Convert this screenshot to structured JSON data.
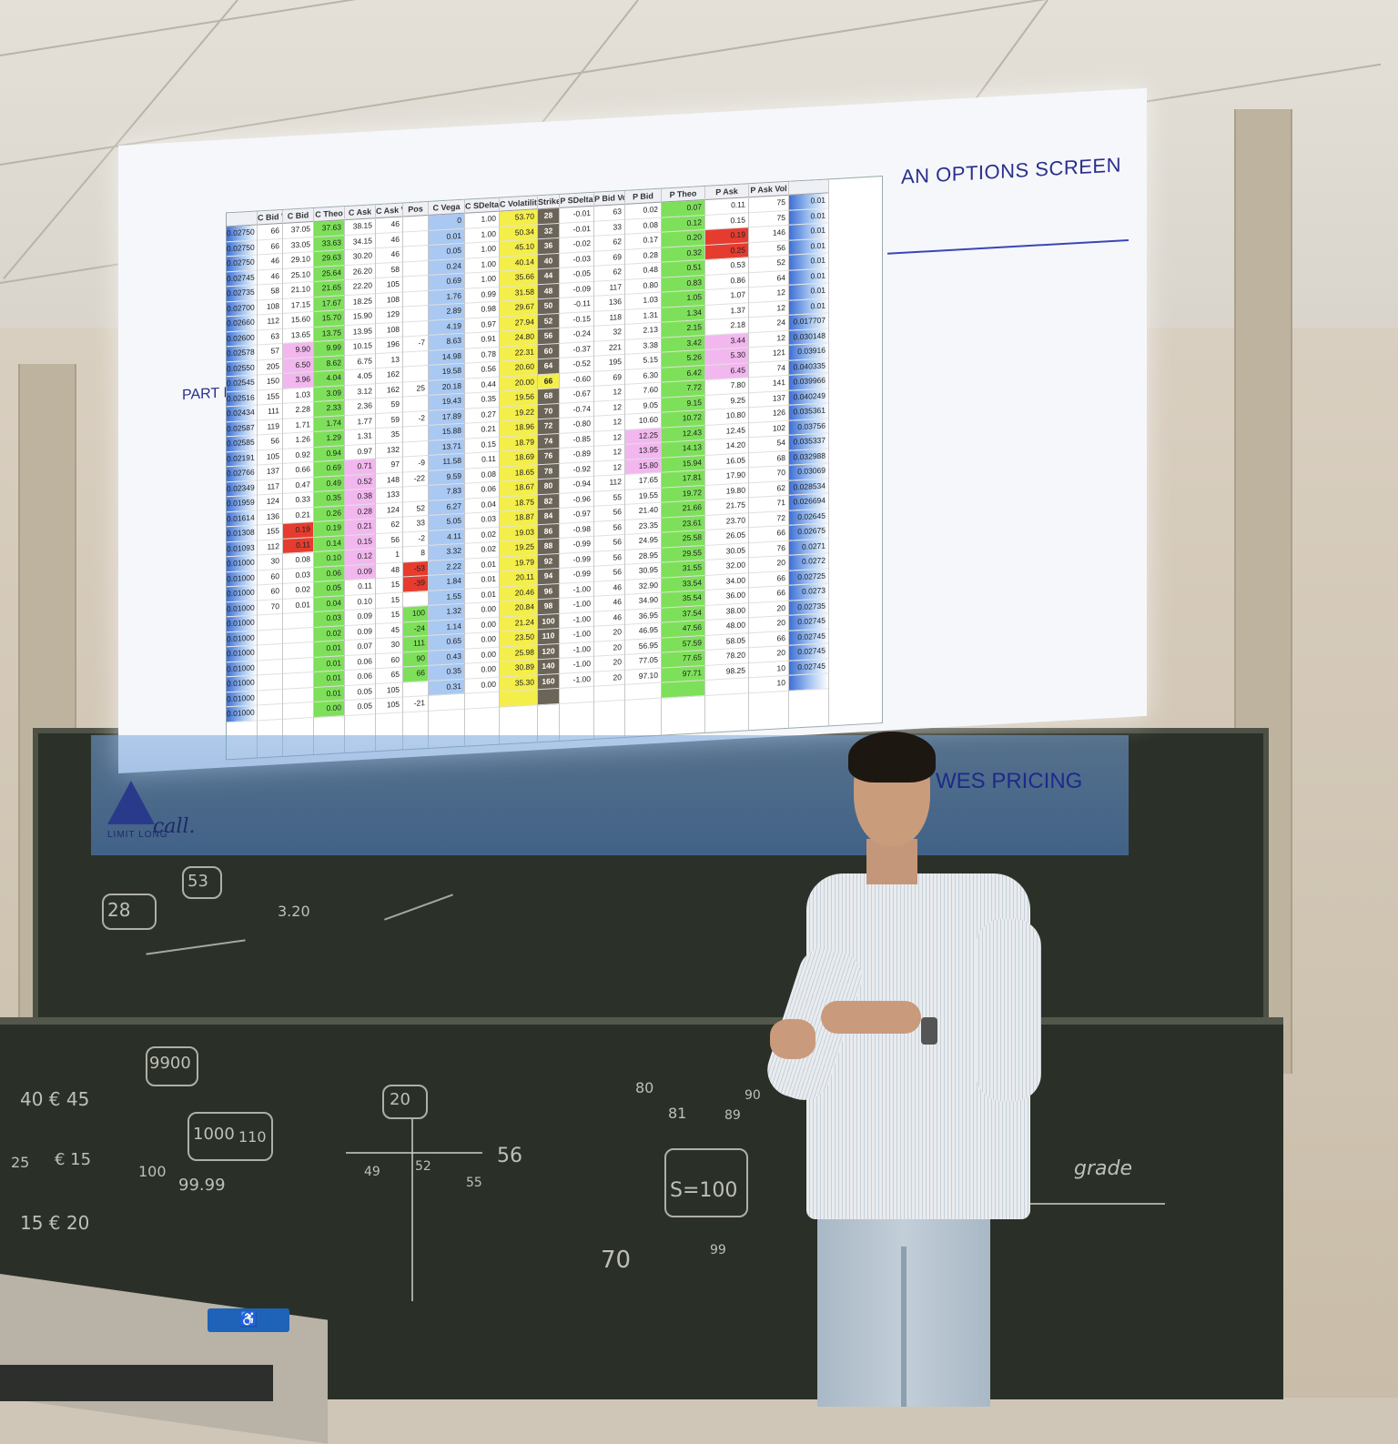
{
  "slide": {
    "title": "AN OPTIONS SCREEN",
    "part": "PART III",
    "banner_text": "WES PRICING",
    "logo_text": "LIMIT LONG",
    "logo_script": "call."
  },
  "table": {
    "columns": [
      {
        "header": "",
        "values": [
          "0.02750",
          "0.02750",
          "0.02750",
          "0.02745",
          "0.02735",
          "0.02700",
          "0.02660",
          "0.02600",
          "0.02578",
          "0.02550",
          "0.02545",
          "0.02516",
          "0.02434",
          "0.02587",
          "0.02585",
          "0.02191",
          "0.02766",
          "0.02349",
          "0.01959",
          "0.01614",
          "0.01308",
          "0.01093",
          "0.01000",
          "0.01000",
          "0.01000",
          "0.01000",
          "0.01000",
          "0.01000",
          "0.01000",
          "0.01000",
          "0.01000",
          "0.01000",
          "0.01000"
        ]
      },
      {
        "header": "C Bid Vol",
        "values": [
          "66",
          "66",
          "46",
          "46",
          "58",
          "108",
          "112",
          "63",
          "57",
          "205",
          "150",
          "155",
          "111",
          "119",
          "56",
          "105",
          "137",
          "117",
          "124",
          "136",
          "155",
          "112",
          "30",
          "60",
          "60",
          "70",
          "",
          "",
          "",
          "",
          "",
          "",
          ""
        ]
      },
      {
        "header": "C Bid",
        "values": [
          "37.05",
          "33.05",
          "29.10",
          "25.10",
          "21.10",
          "17.15",
          "15.60",
          "13.65",
          "9.90",
          "6.50",
          "3.96",
          "1.03",
          "2.28",
          "1.71",
          "1.26",
          "0.92",
          "0.66",
          "0.47",
          "0.33",
          "0.21",
          "0.19",
          "0.11",
          "0.08",
          "0.03",
          "0.02",
          "0.01",
          "",
          "",
          "",
          "",
          "",
          "",
          ""
        ]
      },
      {
        "header": "C Theo",
        "values": [
          "37.63",
          "33.63",
          "29.63",
          "25.64",
          "21.65",
          "17.67",
          "15.70",
          "13.75",
          "9.99",
          "8.62",
          "4.04",
          "3.09",
          "2.33",
          "1.74",
          "1.29",
          "0.94",
          "0.69",
          "0.49",
          "0.35",
          "0.26",
          "0.19",
          "0.14",
          "0.10",
          "0.06",
          "0.05",
          "0.04",
          "0.03",
          "0.02",
          "0.01",
          "0.01",
          "0.01",
          "0.01",
          "0.00"
        ]
      },
      {
        "header": "C Ask",
        "values": [
          "38.15",
          "34.15",
          "30.20",
          "26.20",
          "22.20",
          "18.25",
          "15.90",
          "13.95",
          "10.15",
          "6.75",
          "4.05",
          "3.12",
          "2.36",
          "1.77",
          "1.31",
          "0.97",
          "0.71",
          "0.52",
          "0.38",
          "0.28",
          "0.21",
          "0.15",
          "0.12",
          "0.09",
          "0.11",
          "0.10",
          "0.09",
          "0.09",
          "0.07",
          "0.06",
          "0.06",
          "0.05",
          "0.05"
        ]
      },
      {
        "header": "C Ask Vol",
        "values": [
          "46",
          "46",
          "46",
          "58",
          "105",
          "108",
          "129",
          "108",
          "196",
          "13",
          "162",
          "162",
          "59",
          "59",
          "35",
          "132",
          "97",
          "148",
          "133",
          "124",
          "62",
          "56",
          "1",
          "48",
          "15",
          "15",
          "15",
          "45",
          "30",
          "60",
          "65",
          "105",
          "105"
        ]
      },
      {
        "header": "Pos",
        "values": [
          "",
          "",
          "",
          "",
          "",
          "",
          "",
          "",
          "-7",
          "",
          "",
          "25",
          "",
          "-2",
          "",
          "",
          "-9",
          "-22",
          "",
          "52",
          "33",
          "-2",
          "8",
          "-53",
          "-39",
          "",
          "100",
          "-24",
          "111",
          "90",
          "66",
          "",
          "-21"
        ]
      },
      {
        "header": "C Vega",
        "values": [
          "0",
          "0.01",
          "0.05",
          "0.24",
          "0.69",
          "1.76",
          "2.89",
          "4.19",
          "8.63",
          "14.98",
          "19.58",
          "20.18",
          "19.43",
          "17.89",
          "15.88",
          "13.71",
          "11.58",
          "9.59",
          "7.83",
          "6.27",
          "5.05",
          "4.11",
          "3.32",
          "2.22",
          "1.84",
          "1.55",
          "1.32",
          "1.14",
          "0.65",
          "0.43",
          "0.35",
          "0.31",
          ""
        ]
      },
      {
        "header": "C SDelta",
        "values": [
          "1.00",
          "1.00",
          "1.00",
          "1.00",
          "1.00",
          "0.99",
          "0.98",
          "0.97",
          "0.91",
          "0.78",
          "0.56",
          "0.44",
          "0.35",
          "0.27",
          "0.21",
          "0.15",
          "0.11",
          "0.08",
          "0.06",
          "0.04",
          "0.03",
          "0.02",
          "0.02",
          "0.01",
          "0.01",
          "0.01",
          "0.00",
          "0.00",
          "0.00",
          "0.00",
          "0.00",
          "0.00",
          ""
        ]
      },
      {
        "header": "C Volatility",
        "values": [
          "53.70",
          "50.34",
          "45.10",
          "40.14",
          "35.66",
          "31.58",
          "29.67",
          "27.94",
          "24.80",
          "22.31",
          "20.60",
          "20.00",
          "19.56",
          "19.22",
          "18.96",
          "18.79",
          "18.69",
          "18.65",
          "18.67",
          "18.75",
          "18.87",
          "19.03",
          "19.25",
          "19.79",
          "20.11",
          "20.46",
          "20.84",
          "21.24",
          "23.50",
          "25.98",
          "30.89",
          "35.30",
          ""
        ]
      },
      {
        "header": "Strike",
        "values": [
          "28",
          "32",
          "36",
          "40",
          "44",
          "48",
          "50",
          "52",
          "56",
          "60",
          "64",
          "66",
          "68",
          "70",
          "72",
          "74",
          "76",
          "78",
          "80",
          "82",
          "84",
          "86",
          "88",
          "92",
          "94",
          "96",
          "98",
          "100",
          "110",
          "120",
          "140",
          "160",
          ""
        ]
      },
      {
        "header": "P SDelta",
        "values": [
          "-0.01",
          "-0.01",
          "-0.02",
          "-0.03",
          "-0.05",
          "-0.09",
          "-0.11",
          "-0.15",
          "-0.24",
          "-0.37",
          "-0.52",
          "-0.60",
          "-0.67",
          "-0.74",
          "-0.80",
          "-0.85",
          "-0.89",
          "-0.92",
          "-0.94",
          "-0.96",
          "-0.97",
          "-0.98",
          "-0.99",
          "-0.99",
          "-0.99",
          "-1.00",
          "-1.00",
          "-1.00",
          "-1.00",
          "-1.00",
          "-1.00",
          "-1.00",
          ""
        ]
      },
      {
        "header": "P Bid Vol",
        "values": [
          "63",
          "33",
          "62",
          "69",
          "62",
          "117",
          "136",
          "118",
          "32",
          "221",
          "195",
          "69",
          "12",
          "12",
          "12",
          "12",
          "12",
          "12",
          "112",
          "55",
          "56",
          "56",
          "56",
          "56",
          "56",
          "46",
          "46",
          "46",
          "20",
          "20",
          "20",
          "20",
          ""
        ]
      },
      {
        "header": "P Bid",
        "values": [
          "0.02",
          "0.08",
          "0.17",
          "0.28",
          "0.48",
          "0.80",
          "1.03",
          "1.31",
          "2.13",
          "3.38",
          "5.15",
          "6.30",
          "7.60",
          "9.05",
          "10.60",
          "12.25",
          "13.95",
          "15.80",
          "17.65",
          "19.55",
          "21.40",
          "23.35",
          "24.95",
          "28.95",
          "30.95",
          "32.90",
          "34.90",
          "36.95",
          "46.95",
          "56.95",
          "77.05",
          "97.10",
          ""
        ]
      },
      {
        "header": "P Theo",
        "values": [
          "0.07",
          "0.12",
          "0.20",
          "0.32",
          "0.51",
          "0.83",
          "1.05",
          "1.34",
          "2.15",
          "3.42",
          "5.26",
          "6.42",
          "7.72",
          "9.15",
          "10.72",
          "12.43",
          "14.13",
          "15.94",
          "17.81",
          "19.72",
          "21.66",
          "23.61",
          "25.58",
          "29.55",
          "31.55",
          "33.54",
          "35.54",
          "37.54",
          "47.56",
          "57.59",
          "77.65",
          "97.71",
          ""
        ]
      },
      {
        "header": "P Ask",
        "values": [
          "0.11",
          "0.15",
          "0.19",
          "0.25",
          "0.53",
          "0.86",
          "1.07",
          "1.37",
          "2.18",
          "3.44",
          "5.30",
          "6.45",
          "7.80",
          "9.25",
          "10.80",
          "12.45",
          "14.20",
          "16.05",
          "17.90",
          "19.80",
          "21.75",
          "23.70",
          "26.05",
          "30.05",
          "32.00",
          "34.00",
          "36.00",
          "38.00",
          "48.00",
          "58.05",
          "78.20",
          "98.25",
          ""
        ]
      },
      {
        "header": "P Ask Vol",
        "values": [
          "75",
          "75",
          "146",
          "56",
          "52",
          "64",
          "12",
          "12",
          "24",
          "12",
          "121",
          "74",
          "141",
          "137",
          "126",
          "102",
          "54",
          "68",
          "70",
          "62",
          "71",
          "72",
          "66",
          "76",
          "20",
          "66",
          "66",
          "20",
          "20",
          "66",
          "20",
          "10",
          "10"
        ]
      },
      {
        "header": "",
        "values": [
          "0.01",
          "0.01",
          "0.01",
          "0.01",
          "0.01",
          "0.01",
          "0.01",
          "0.01",
          "0.017707",
          "0.030148",
          "0.03916",
          "0.040335",
          "0.039966",
          "0.040249",
          "0.035361",
          "0.03756",
          "0.035337",
          "0.032988",
          "0.03069",
          "0.028534",
          "0.026694",
          "0.02645",
          "0.02675",
          "0.0271",
          "0.0272",
          "0.02725",
          "0.0273",
          "0.02735",
          "0.02745",
          "0.02745",
          "0.02745",
          "0.02745",
          ""
        ]
      }
    ],
    "colors": {
      "green": "#7ee05a",
      "yellow": "#f4ee4a",
      "pink": "#f2b7ef",
      "blue": "#a9c8f2",
      "red": "#e53c2f",
      "strike": "#6b6458",
      "vol_bar": "#3d6fd6"
    }
  },
  "blackboard": {
    "top_notes": [
      "53",
      "28",
      "3.20"
    ],
    "bottom_notes": [
      "9900",
      "40 € 45",
      "25",
      "€ 15",
      "15 € 20",
      "100",
      "1000",
      "99.99",
      "110",
      "20",
      "49",
      "52",
      "56",
      "55",
      "80",
      "81",
      "89",
      "90",
      "S=100",
      "70",
      "99",
      "grade"
    ]
  },
  "sign": {
    "icon": "wheelchair-icon",
    "glyph": "♿"
  }
}
